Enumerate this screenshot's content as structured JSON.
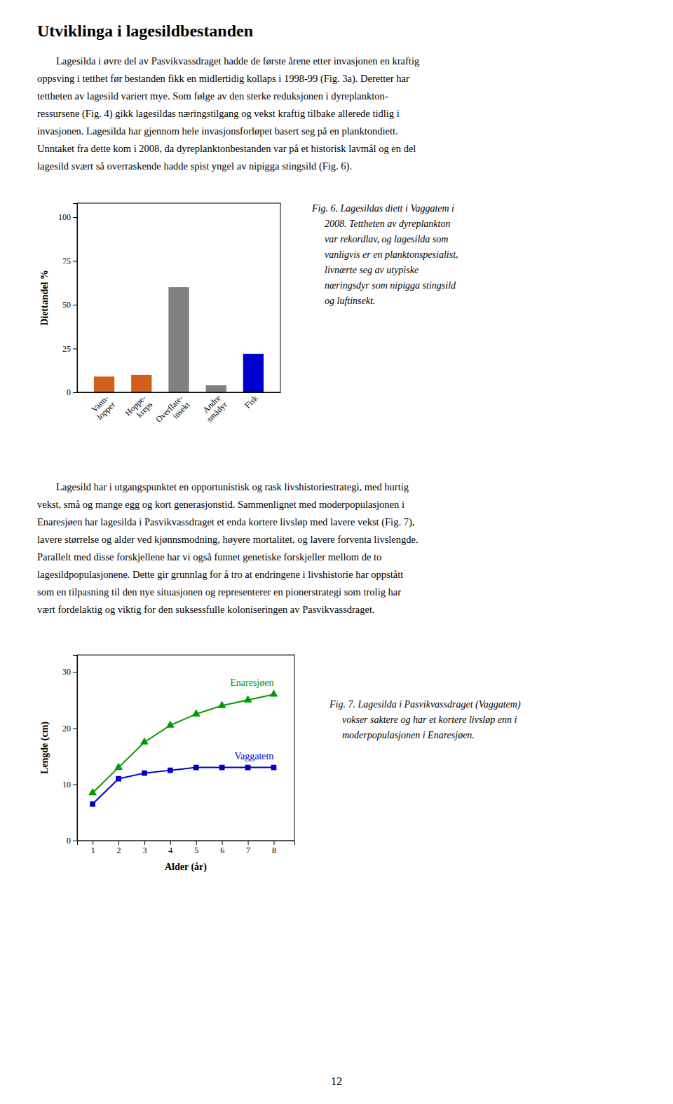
{
  "title": "Utviklinga i lagesildbestanden",
  "paragraphs": [
    [
      "Lagesilda i øvre del av Pasvikvassdraget hadde de første årene etter invasjonen en kraftig",
      "oppsving i tetthet før bestanden fikk en midlertidig kollaps i 1998-99 (Fig. 3a). Deretter har",
      "tettheten av lagesild variert mye. Som følge av den sterke reduksjonen i dyreplankton-",
      "ressursene (Fig. 4) gikk lagesildas næringstilgang og vekst kraftig tilbake allerede tidlig i",
      "invasjonen. Lagesilda har gjennom hele invasjonsforløpet basert seg på en planktondiett.",
      "Unntaket fra dette kom i 2008, da dyreplanktonbestanden var på et historisk lavmål og en del",
      "lagesild svært så overraskende hadde spist yngel av nipigga stingsild (Fig. 6)."
    ],
    [
      "Lagesild har i utgangspunktet en opportunistisk og rask livshistoriestrategi, med hurtig",
      "vekst, små og mange egg og kort generasjonstid. Sammenlignet med moderpopulasjonen i",
      "Enaresjøen har lagesilda i Pasvikvassdraget et enda kortere livsløp med lavere vekst (Fig. 7),",
      "lavere størrelse og alder ved kjønnsmodning, høyere mortalitet, og lavere forventa livslengde.",
      "Parallelt med disse forskjellene har vi også funnet genetiske forskjeller mellom de to",
      "lagesildpopulasjonene. Dette gir grunnlag for å tro at endringene i livshistorie har oppstått",
      "som en tilpasning til den nye situasjonen og representerer en pionerstrategi som trolig har",
      "vært fordelaktig og viktig for den suksessfulle koloniseringen av Pasvikvassdraget."
    ]
  ],
  "captions": [
    [
      "Fig. 6. Lagesildas diett i Vaggatem i",
      "2008. Tettheten av dyreplankton",
      "var rekordlav, og lagesilda som",
      "vanligvis er en planktonspesialist,",
      "livnærte seg av utypiske",
      "næringsdyr som nipigga stingsild",
      "og luftinsekt."
    ],
    [
      "Fig. 7. Lagesilda i Pasvikvassdraget (Vaggatem)",
      "vokser saktere og har et kortere livsløp enn i",
      "moderpopulasjonen i Enaresjøen."
    ]
  ],
  "page_number": "12",
  "chart_data": [
    {
      "type": "bar",
      "categories": [
        "Vann-\nlopper",
        "Hoppe-\nkreps",
        "Overflate-\ninsekt",
        "Andre\nsmådyr",
        "Fisk"
      ],
      "values": [
        9,
        10,
        60,
        4,
        22
      ],
      "colors": [
        "#d2601a",
        "#d2601a",
        "#808080",
        "#808080",
        "#0000cc"
      ],
      "y_label": "Diettandel %",
      "ylim": [
        0,
        108
      ],
      "yticks": [
        0,
        25,
        50,
        75,
        100
      ],
      "grid": false
    },
    {
      "type": "line",
      "x_label": "Alder (år)",
      "y_label": "Lengde (cm)",
      "x": [
        1,
        2,
        3,
        4,
        5,
        6,
        7,
        8
      ],
      "series": [
        {
          "name": "Enaresjøen",
          "color": "#009900",
          "marker": "triangle",
          "values": [
            8.5,
            13,
            17.5,
            20.5,
            22.5,
            24,
            25,
            26
          ]
        },
        {
          "name": "Vaggatem",
          "color": "#0000cc",
          "marker": "square",
          "values": [
            6.5,
            11,
            12,
            12.5,
            13,
            13,
            13,
            13
          ]
        }
      ],
      "xlim": [
        0.4,
        8.8
      ],
      "xticks": [
        1,
        2,
        3,
        4,
        5,
        6,
        7,
        8
      ],
      "ylim": [
        0,
        33
      ],
      "yticks": [
        0,
        10,
        20,
        30
      ],
      "grid": false
    }
  ]
}
